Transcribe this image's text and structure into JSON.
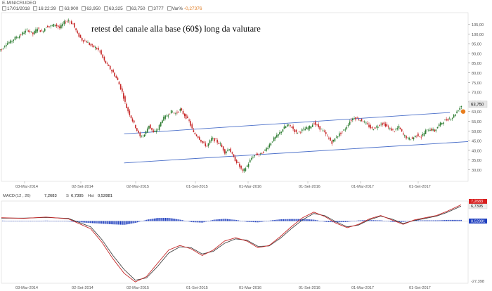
{
  "header": {
    "symbol": "E-MINICRUDEO",
    "date": "17/01/2018",
    "time": "16:22:39",
    "open": "63,900",
    "high": "63,950",
    "low": "63,325",
    "close": "63,750",
    "volume": "3777",
    "var_label": "Var%",
    "var_value": "-0,27376"
  },
  "annotation": "retest del canale alla base (60$) long da valutare",
  "colors": {
    "up_candle": "#2e7d32",
    "down_candle": "#c62828",
    "channel": "#4a6fc9",
    "signal_dot": "#e87d1e",
    "macd_line": "#c62828",
    "signal_line": "#333333",
    "histogram": "#1f3fbf"
  },
  "chart_data": [
    {
      "type": "line",
      "name": "price",
      "y_axis_ticks": [
        "105,00",
        "100,00",
        "95,00",
        "90,00",
        "85,00",
        "80,00",
        "75,00",
        "70,00",
        "65,00",
        "60,00",
        "55,00",
        "50,00",
        "45,00",
        "40,00",
        "35,00",
        "30,00"
      ],
      "ylim": [
        24,
        111
      ],
      "x_tick_labels": [
        "03-Mar-2014",
        "02-Set-2014",
        "02-Mar-2015",
        "01-Set-2015",
        "01-Mar-2016",
        "01-Set-2016",
        "01-Mar-2017",
        "01-Set-2017"
      ],
      "last_price_label": "63,750",
      "x": [
        0,
        2,
        4,
        6,
        8,
        10,
        12,
        14,
        16,
        18,
        20,
        22,
        24,
        26,
        28,
        30,
        32,
        34,
        36,
        38,
        40,
        42,
        44,
        46,
        48,
        50,
        52,
        54,
        56,
        58,
        60,
        62,
        64,
        66,
        68,
        70,
        72,
        74,
        76,
        78,
        80,
        82,
        84,
        86,
        88,
        90,
        92,
        94,
        96,
        98,
        100,
        102,
        104,
        106,
        108,
        110,
        112,
        114,
        116,
        118,
        120,
        122,
        124,
        126,
        128,
        130,
        132,
        134,
        136,
        138,
        140,
        142,
        144,
        146,
        148,
        150,
        152,
        154,
        156,
        158,
        160,
        162,
        164,
        166,
        168,
        170,
        172,
        174,
        176,
        178,
        180,
        182,
        184,
        186,
        188,
        190,
        192,
        194,
        196,
        198,
        200,
        202,
        204,
        206
      ],
      "values": [
        92,
        95,
        96,
        98,
        99,
        101,
        102,
        100,
        103,
        101,
        104,
        104,
        105,
        103,
        106,
        107,
        105,
        100,
        97,
        96,
        94,
        93,
        91,
        86,
        83,
        80,
        76,
        70,
        62,
        57,
        52,
        47,
        48,
        53,
        49,
        51,
        56,
        58,
        60,
        59,
        61,
        58,
        55,
        49,
        47,
        44,
        42,
        46,
        45,
        43,
        39,
        41,
        36,
        33,
        29,
        32,
        36,
        38,
        38,
        40,
        43,
        46,
        48,
        51,
        53,
        52,
        49,
        50,
        51,
        52,
        54,
        52,
        50,
        47,
        44,
        47,
        49,
        51,
        55,
        57,
        56,
        55,
        53,
        51,
        52,
        54,
        53,
        51,
        50,
        52,
        48,
        46,
        46,
        48,
        47,
        50,
        51,
        50,
        53,
        55,
        56,
        57,
        60,
        63
      ],
      "channel_upper": {
        "x": [
          55,
          201
        ],
        "y": [
          48.5,
          59.5
        ]
      },
      "channel_lower": {
        "x": [
          55,
          206
        ],
        "y": [
          33.5,
          44.5
        ]
      },
      "marker_point": {
        "x": 206,
        "y": 60
      }
    },
    {
      "type": "line",
      "name": "MACD (12, 26)",
      "indicator_label": "MACD",
      "params": "(12 , 26)",
      "series_labels": [
        "S",
        "Hst"
      ],
      "values_readout": [
        "7,2683",
        "6,7395",
        "0,52881"
      ],
      "axis_top": "7,2683",
      "axis_second": "6,7395",
      "axis_mid": "0,52881",
      "axis_bottom": "-27,398",
      "ylim": [
        -28,
        9
      ],
      "x_tick_labels": [
        "03-Mar-2014",
        "02-Set-2014",
        "02-Mar-2015",
        "01-Set-2015",
        "01-Mar-2016",
        "01-Set-2016",
        "01-Mar-2017",
        "01-Set-2017"
      ],
      "x": [
        0,
        10,
        20,
        30,
        40,
        45,
        50,
        55,
        60,
        65,
        70,
        75,
        80,
        85,
        90,
        95,
        100,
        105,
        110,
        115,
        120,
        125,
        130,
        135,
        140,
        145,
        150,
        155,
        160,
        165,
        170,
        175,
        180,
        185,
        190,
        195,
        200,
        206
      ],
      "macd": [
        1.5,
        1.2,
        1.8,
        1.0,
        -3.5,
        -9.5,
        -17,
        -23.5,
        -27.4,
        -25,
        -19,
        -13,
        -11,
        -12.5,
        -15.5,
        -13,
        -9,
        -7.5,
        -9,
        -12,
        -11,
        -7,
        -2.5,
        1.5,
        4,
        2,
        -1,
        -3,
        -1.5,
        1,
        2.5,
        0.5,
        -1.5,
        0.5,
        1.5,
        2.5,
        4.5,
        7.3
      ],
      "signal": [
        1.3,
        1.3,
        1.6,
        1.2,
        -2.6,
        -8.3,
        -15.5,
        -21.8,
        -26.6,
        -25.6,
        -20.4,
        -14.4,
        -11.6,
        -12.0,
        -14.8,
        -13.6,
        -10.0,
        -8.0,
        -8.6,
        -11.4,
        -11.2,
        -7.8,
        -3.4,
        0.6,
        3.4,
        2.4,
        -0.4,
        -2.6,
        -1.8,
        0.6,
        2.2,
        0.9,
        -1.1,
        0.2,
        1.2,
        2.2,
        4.0,
        6.7
      ],
      "histogram": [
        0.2,
        -0.1,
        0.2,
        -0.2,
        -0.9,
        -1.2,
        -1.5,
        -1.7,
        -0.8,
        0.6,
        1.4,
        1.4,
        0.6,
        -0.5,
        -0.7,
        0.6,
        1.0,
        0.5,
        -0.4,
        -0.6,
        0.2,
        0.8,
        0.9,
        0.9,
        0.6,
        -0.4,
        -0.6,
        -0.4,
        0.3,
        0.4,
        0.3,
        -0.4,
        -0.4,
        0.3,
        0.3,
        0.3,
        0.5,
        0.5
      ]
    }
  ]
}
